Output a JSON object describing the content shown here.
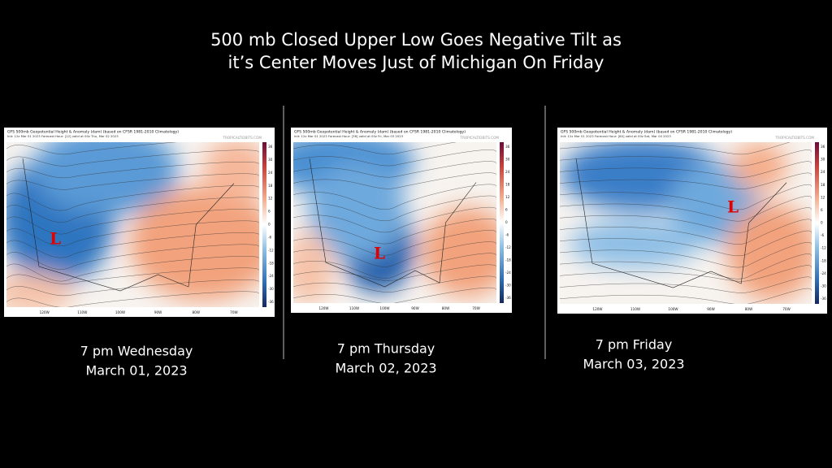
{
  "title": [
    "500 mb Closed Upper Low Goes Negative Tilt as",
    "it’s Center  Moves Just of Michigan On Friday"
  ],
  "panels": [
    {
      "map_title": "GFS 500mb Geopotential Height & Anomaly (dam) (based on CFSR 1981-2010 Climatology)",
      "init": "Init: 12z Mar 01 2023   Forecast Hour: [12]   valid at 00z Thu, Mar 02 2023",
      "site": "TROPICALTIDBITS.COM",
      "colorbar_ticks": [
        36,
        30,
        24,
        18,
        12,
        6,
        0,
        -6,
        -12,
        -18,
        -24,
        -30,
        -36
      ],
      "lon_labels": [
        "120W",
        "110W",
        "100W",
        "90W",
        "80W",
        "70W"
      ],
      "low_label": "L",
      "caption_time": "7 pm Wednesday",
      "caption_date": "March 01, 2023"
    },
    {
      "map_title": "GFS 500mb Geopotential Height & Anomaly (dam) (based on CFSR 1981-2010 Climatology)",
      "init": "Init: 12z Mar 01 2023   Forecast Hour: [36]   valid at 00z Fri, Mar 03 2023",
      "site": "TROPICALTIDBITS.COM",
      "colorbar_ticks": [
        36,
        30,
        24,
        18,
        12,
        6,
        0,
        -6,
        -12,
        -18,
        -24,
        -30,
        -36
      ],
      "lon_labels": [
        "120W",
        "110W",
        "100W",
        "90W",
        "80W",
        "70W"
      ],
      "low_label": "L",
      "caption_time": "7 pm Thursday",
      "caption_date": "March 02, 2023"
    },
    {
      "map_title": "GFS 500mb Geopotential Height & Anomaly (dam) (based on CFSR 1981-2010 Climatology)",
      "init": "Init: 12z Mar 01 2023   Forecast Hour: [60]   valid at 00z Sat, Mar 04 2023",
      "site": "TROPICALTIDBITS.COM",
      "colorbar_ticks": [
        36,
        30,
        24,
        18,
        12,
        6,
        0,
        -6,
        -12,
        -18,
        -24,
        -30,
        -36
      ],
      "lon_labels": [
        "120W",
        "110W",
        "100W",
        "90W",
        "80W",
        "70W"
      ],
      "low_label": "L",
      "caption_time": "7 pm Friday",
      "caption_date": "March 03, 2023"
    }
  ]
}
